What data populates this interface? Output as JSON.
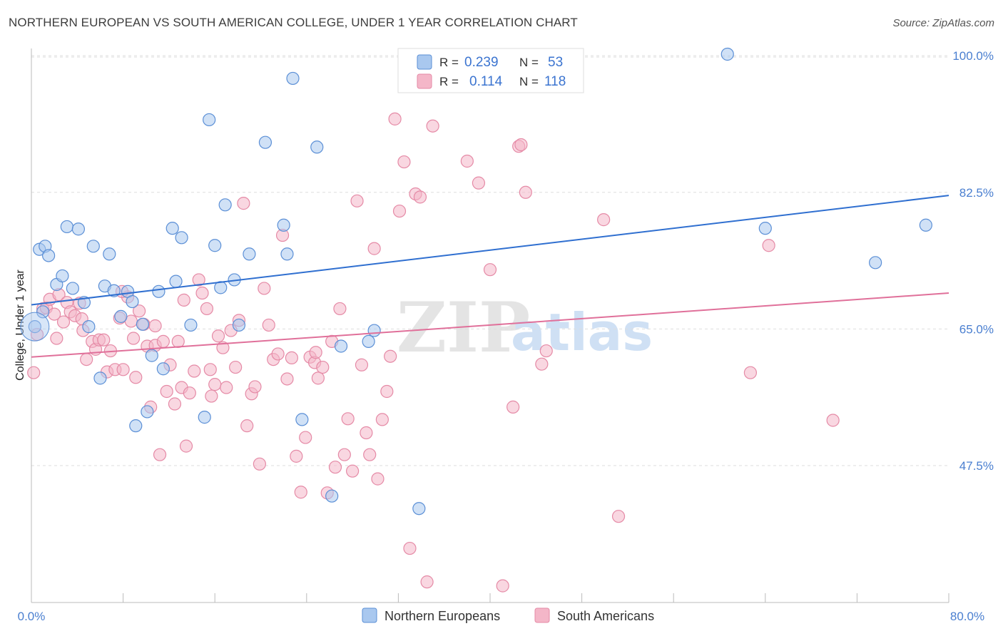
{
  "header": {
    "title": "NORTHERN EUROPEAN VS SOUTH AMERICAN COLLEGE, UNDER 1 YEAR CORRELATION CHART",
    "source": "Source: ZipAtlas.com"
  },
  "watermark": {
    "part1": "ZIP",
    "part2": "atlas"
  },
  "colors": {
    "blue_fill": "#a9c8ef",
    "blue_stroke": "#5b8fd6",
    "blue_line": "#2f6fd0",
    "pink_fill": "#f4b6c8",
    "pink_stroke": "#e58aa6",
    "pink_line": "#e0709a",
    "grid": "#dddddd",
    "tick_label": "#4a7fd0"
  },
  "legend": {
    "rows": [
      {
        "r_label": "R = ",
        "r_value": "0.239",
        "n_label": "N = ",
        "n_value": "53"
      },
      {
        "r_label": "R = ",
        "r_value": "0.114",
        "n_label": "N = ",
        "n_value": "118"
      }
    ]
  },
  "chart_data": {
    "type": "scatter",
    "title": "NORTHERN EUROPEAN VS SOUTH AMERICAN COLLEGE, UNDER 1 YEAR CORRELATION CHART",
    "xlabel": "",
    "ylabel": "College, Under 1 year",
    "xlim": [
      0,
      80
    ],
    "ylim": [
      33,
      101
    ],
    "x_tick_labels": [
      "0.0%",
      "80.0%"
    ],
    "y_ticks": [
      47.5,
      65.0,
      82.5,
      100.0
    ],
    "y_tick_labels": [
      "47.5%",
      "65.0%",
      "82.5%",
      "100.0%"
    ],
    "series": [
      {
        "name": "Northern Europeans",
        "color": "#a9c8ef",
        "trend": {
          "x": [
            0,
            80
          ],
          "y": [
            68.1,
            82.1
          ]
        },
        "points": [
          [
            0.3,
            65.3
          ],
          [
            0.7,
            75.2
          ],
          [
            1.0,
            67.2
          ],
          [
            1.2,
            75.6
          ],
          [
            1.5,
            74.4
          ],
          [
            2.2,
            70.7
          ],
          [
            2.7,
            71.8
          ],
          [
            3.1,
            78.1
          ],
          [
            3.6,
            70.2
          ],
          [
            4.1,
            77.8
          ],
          [
            4.6,
            68.4
          ],
          [
            5.0,
            65.3
          ],
          [
            5.4,
            75.6
          ],
          [
            6.0,
            58.7
          ],
          [
            6.4,
            70.5
          ],
          [
            6.8,
            74.6
          ],
          [
            7.2,
            69.9
          ],
          [
            7.8,
            66.6
          ],
          [
            8.4,
            69.8
          ],
          [
            8.8,
            68.5
          ],
          [
            9.1,
            52.6
          ],
          [
            9.7,
            65.6
          ],
          [
            10.1,
            54.4
          ],
          [
            10.5,
            61.6
          ],
          [
            11.1,
            69.8
          ],
          [
            11.5,
            59.9
          ],
          [
            12.3,
            77.9
          ],
          [
            12.6,
            71.1
          ],
          [
            13.1,
            76.7
          ],
          [
            13.9,
            65.5
          ],
          [
            15.1,
            53.7
          ],
          [
            15.5,
            91.8
          ],
          [
            16.0,
            75.7
          ],
          [
            16.5,
            70.3
          ],
          [
            16.9,
            80.9
          ],
          [
            17.7,
            71.3
          ],
          [
            18.1,
            65.5
          ],
          [
            19.0,
            74.6
          ],
          [
            20.4,
            88.9
          ],
          [
            22.0,
            78.3
          ],
          [
            22.3,
            74.6
          ],
          [
            22.8,
            97.1
          ],
          [
            23.6,
            53.4
          ],
          [
            24.9,
            88.3
          ],
          [
            26.2,
            43.6
          ],
          [
            27.0,
            62.8
          ],
          [
            29.4,
            63.4
          ],
          [
            29.9,
            64.8
          ],
          [
            33.8,
            42.0
          ],
          [
            60.7,
            100.2
          ],
          [
            64.0,
            77.9
          ],
          [
            73.6,
            73.5
          ],
          [
            78.0,
            78.3
          ]
        ]
      },
      {
        "name": "South Americans",
        "color": "#f4b6c8",
        "trend": {
          "x": [
            0,
            80
          ],
          "y": [
            61.4,
            69.6
          ]
        },
        "points": [
          [
            0.2,
            59.4
          ],
          [
            0.5,
            64.3
          ],
          [
            1.0,
            67.6
          ],
          [
            1.3,
            67.7
          ],
          [
            1.6,
            68.8
          ],
          [
            2.0,
            66.9
          ],
          [
            2.4,
            69.4
          ],
          [
            2.8,
            65.9
          ],
          [
            3.1,
            68.4
          ],
          [
            3.4,
            67.2
          ],
          [
            3.8,
            66.7
          ],
          [
            4.2,
            68.3
          ],
          [
            4.5,
            64.8
          ],
          [
            4.8,
            61.1
          ],
          [
            5.3,
            63.4
          ],
          [
            5.6,
            62.4
          ],
          [
            5.9,
            63.6
          ],
          [
            6.3,
            63.6
          ],
          [
            6.6,
            59.5
          ],
          [
            6.9,
            62.2
          ],
          [
            7.3,
            59.8
          ],
          [
            7.7,
            66.4
          ],
          [
            8.0,
            59.8
          ],
          [
            8.4,
            69.1
          ],
          [
            8.7,
            66.0
          ],
          [
            9.1,
            58.8
          ],
          [
            9.4,
            67.3
          ],
          [
            9.8,
            65.6
          ],
          [
            10.1,
            62.8
          ],
          [
            10.4,
            55.0
          ],
          [
            10.8,
            62.9
          ],
          [
            11.2,
            48.9
          ],
          [
            11.5,
            63.4
          ],
          [
            11.8,
            57.0
          ],
          [
            12.1,
            60.4
          ],
          [
            12.5,
            55.4
          ],
          [
            12.8,
            63.4
          ],
          [
            13.1,
            57.5
          ],
          [
            13.5,
            50.0
          ],
          [
            13.8,
            56.8
          ],
          [
            14.2,
            59.6
          ],
          [
            14.6,
            71.3
          ],
          [
            14.9,
            69.6
          ],
          [
            15.3,
            67.6
          ],
          [
            15.6,
            59.8
          ],
          [
            16.0,
            57.9
          ],
          [
            16.3,
            64.1
          ],
          [
            16.7,
            62.6
          ],
          [
            17.0,
            57.5
          ],
          [
            17.4,
            64.8
          ],
          [
            17.8,
            60.1
          ],
          [
            18.1,
            66.1
          ],
          [
            18.5,
            81.1
          ],
          [
            18.8,
            52.6
          ],
          [
            19.2,
            56.7
          ],
          [
            19.5,
            57.6
          ],
          [
            19.9,
            47.7
          ],
          [
            20.3,
            70.2
          ],
          [
            20.7,
            65.5
          ],
          [
            21.1,
            61.1
          ],
          [
            21.5,
            61.8
          ],
          [
            21.9,
            77.0
          ],
          [
            22.3,
            58.6
          ],
          [
            22.7,
            61.3
          ],
          [
            23.1,
            48.7
          ],
          [
            23.5,
            44.1
          ],
          [
            23.9,
            51.1
          ],
          [
            24.3,
            61.4
          ],
          [
            24.7,
            60.7
          ],
          [
            25.0,
            58.7
          ],
          [
            25.4,
            60.1
          ],
          [
            25.8,
            44.0
          ],
          [
            26.2,
            63.4
          ],
          [
            26.5,
            47.3
          ],
          [
            26.9,
            67.6
          ],
          [
            27.3,
            48.9
          ],
          [
            27.6,
            53.5
          ],
          [
            28.0,
            46.8
          ],
          [
            28.4,
            81.4
          ],
          [
            28.8,
            60.4
          ],
          [
            29.2,
            51.7
          ],
          [
            29.5,
            48.9
          ],
          [
            29.9,
            75.3
          ],
          [
            30.2,
            45.8
          ],
          [
            30.6,
            53.4
          ],
          [
            31.0,
            57.0
          ],
          [
            31.3,
            61.5
          ],
          [
            31.7,
            91.9
          ],
          [
            32.1,
            80.1
          ],
          [
            32.5,
            86.4
          ],
          [
            33.0,
            36.9
          ],
          [
            33.5,
            82.3
          ],
          [
            33.9,
            81.9
          ],
          [
            34.5,
            32.6
          ],
          [
            35.0,
            91.0
          ],
          [
            38.0,
            86.5
          ],
          [
            39.0,
            83.7
          ],
          [
            40.0,
            72.6
          ],
          [
            41.1,
            32.1
          ],
          [
            42.0,
            55.0
          ],
          [
            42.5,
            88.4
          ],
          [
            42.7,
            88.6
          ],
          [
            43.1,
            82.5
          ],
          [
            44.5,
            60.5
          ],
          [
            44.9,
            62.2
          ],
          [
            49.9,
            79.0
          ],
          [
            51.2,
            41.0
          ],
          [
            62.7,
            59.4
          ],
          [
            64.3,
            75.7
          ],
          [
            69.9,
            53.3
          ],
          [
            10.8,
            65.4
          ],
          [
            7.9,
            69.8
          ],
          [
            13.3,
            68.7
          ],
          [
            4.4,
            66.3
          ],
          [
            2.2,
            63.8
          ],
          [
            8.9,
            63.8
          ],
          [
            15.7,
            56.4
          ],
          [
            24.8,
            62.0
          ]
        ]
      }
    ]
  },
  "bottom_legend": {
    "items": [
      {
        "label": "Northern Europeans"
      },
      {
        "label": "South Americans"
      }
    ]
  }
}
